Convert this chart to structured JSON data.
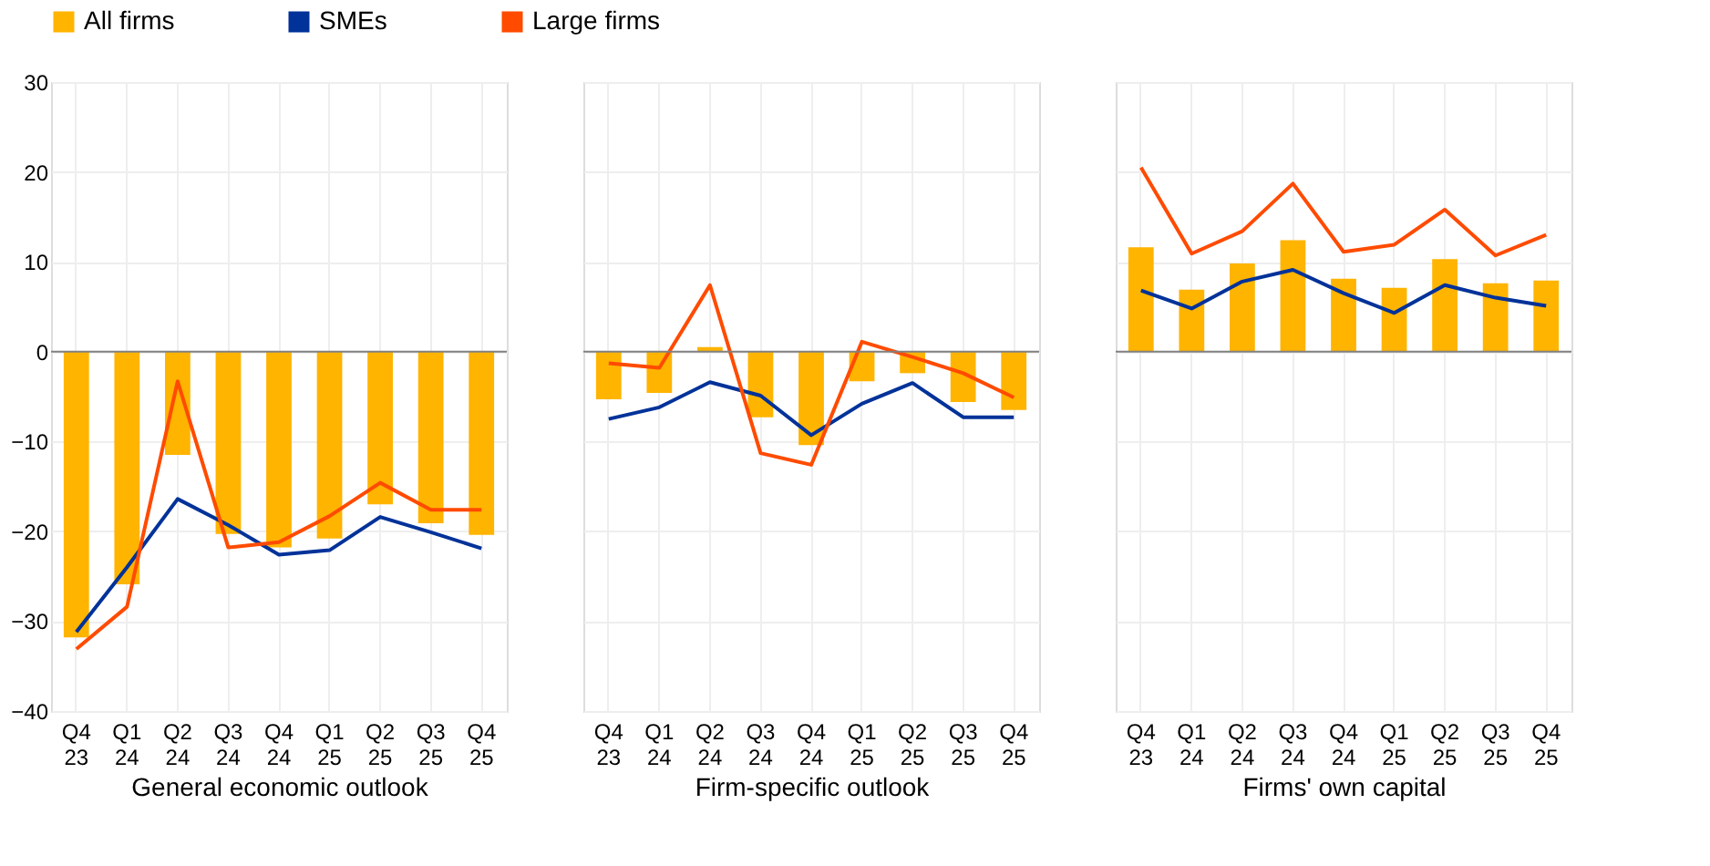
{
  "chart_data": [
    {
      "type": "bar",
      "xlabel": "General economic outlook",
      "categories": [
        "Q4 23",
        "Q1 24",
        "Q2 24",
        "Q3 24",
        "Q4 24",
        "Q1 25",
        "Q2 25",
        "Q3 25",
        "Q4 25"
      ],
      "ylim": [
        -40,
        30
      ],
      "yticks": [
        -40,
        -30,
        -20,
        -10,
        0,
        10,
        20,
        30
      ],
      "grid": true,
      "legend": "top",
      "ref_lines": [
        {
          "axis": "y",
          "value": 0,
          "color": "#808080"
        }
      ],
      "series": [
        {
          "name": "All firms",
          "color": "#ffb400",
          "values": [
            -31.8,
            -25.9,
            -11.5,
            -20.3,
            -21.8,
            -20.8,
            -17.0,
            -19.1,
            -20.4
          ]
        },
        {
          "name": "SMEs",
          "type": "line",
          "color": "#003299",
          "values": [
            -31.2,
            -24.0,
            -16.4,
            -19.3,
            -22.6,
            -22.1,
            -18.4,
            -20.1,
            -21.9
          ]
        },
        {
          "name": "Large firms",
          "type": "line",
          "color": "#ff4b00",
          "values": [
            -33.1,
            -28.4,
            -3.3,
            -21.8,
            -21.2,
            -18.3,
            -14.6,
            -17.6,
            -17.6
          ]
        }
      ]
    },
    {
      "type": "bar",
      "xlabel": "Firm-specific outlook",
      "categories": [
        "Q4 23",
        "Q1 24",
        "Q2 24",
        "Q3 24",
        "Q4 24",
        "Q1 25",
        "Q2 25",
        "Q3 25",
        "Q4 25"
      ],
      "ylim": [
        -40,
        30
      ],
      "yticks": [
        -40,
        -30,
        -20,
        -10,
        0,
        10,
        20,
        30
      ],
      "grid": true,
      "tick_labels": "x",
      "ref_lines": [
        {
          "axis": "y",
          "value": 0,
          "color": "#808080"
        }
      ],
      "series": [
        {
          "name": "All firms",
          "color": "#ffb400",
          "values": [
            -5.3,
            -4.6,
            0.5,
            -7.3,
            -10.4,
            -3.3,
            -2.4,
            -5.6,
            -6.5
          ]
        },
        {
          "name": "SMEs",
          "type": "line",
          "color": "#003299",
          "values": [
            -7.5,
            -6.2,
            -3.4,
            -4.9,
            -9.3,
            -5.8,
            -3.5,
            -7.3,
            -7.3
          ]
        },
        {
          "name": "Large firms",
          "type": "line",
          "color": "#ff4b00",
          "values": [
            -1.3,
            -1.8,
            7.4,
            -11.3,
            -12.6,
            1.1,
            -0.6,
            -2.4,
            -5.1
          ]
        }
      ]
    },
    {
      "type": "bar",
      "xlabel": "Firms' own capital",
      "categories": [
        "Q4 23",
        "Q1 24",
        "Q2 24",
        "Q3 24",
        "Q4 24",
        "Q1 25",
        "Q2 25",
        "Q3 25",
        "Q4 25"
      ],
      "ylim": [
        -40,
        30
      ],
      "yticks": [
        -40,
        -30,
        -20,
        -10,
        0,
        10,
        20,
        30
      ],
      "grid": true,
      "tick_labels": "x",
      "ref_lines": [
        {
          "axis": "y",
          "value": 0,
          "color": "#808080"
        }
      ],
      "series": [
        {
          "name": "All firms",
          "color": "#ffb400",
          "values": [
            11.6,
            6.9,
            9.8,
            12.4,
            8.1,
            7.1,
            10.3,
            7.6,
            7.9
          ]
        },
        {
          "name": "SMEs",
          "type": "line",
          "color": "#003299",
          "values": [
            6.8,
            4.8,
            7.8,
            9.1,
            6.5,
            4.3,
            7.4,
            6.0,
            5.1
          ]
        },
        {
          "name": "Large firms",
          "type": "line",
          "color": "#ff4b00",
          "values": [
            20.5,
            10.9,
            13.4,
            18.7,
            11.1,
            11.9,
            15.8,
            10.7,
            13.0
          ]
        }
      ]
    }
  ]
}
